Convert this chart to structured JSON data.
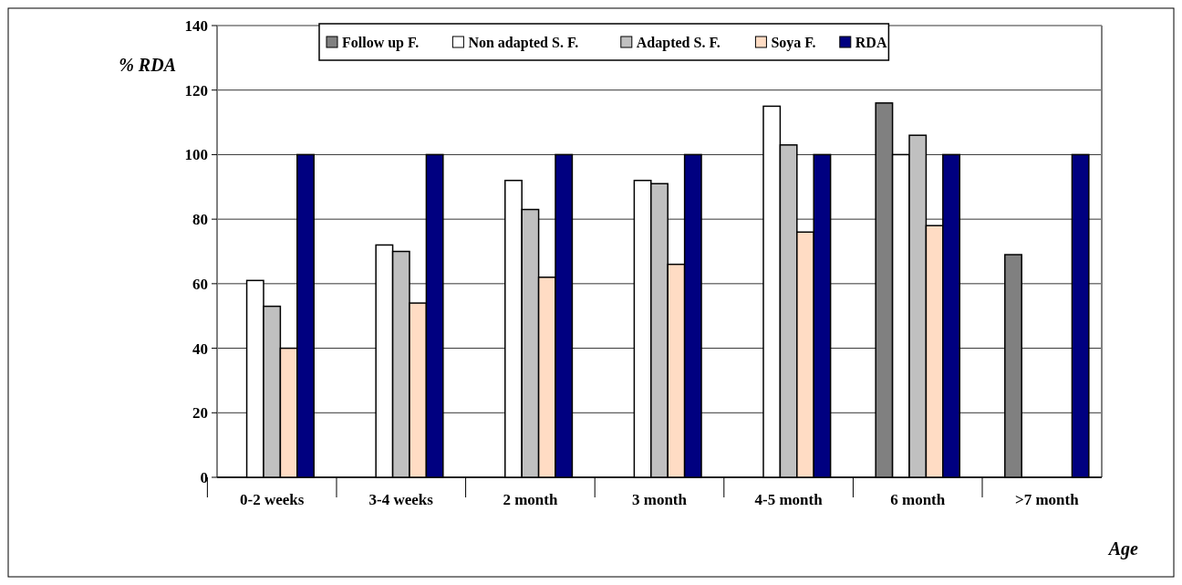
{
  "chart_data": {
    "type": "bar",
    "xlabel": "Age",
    "ylabel": "% RDA",
    "categories": [
      "0-2 weeks",
      "3-4 weeks",
      "2 month",
      "3 month",
      "4-5 month",
      "6 month",
      ">7 month"
    ],
    "series": [
      {
        "name": "Follow up F.",
        "color": "#808080",
        "values": [
          null,
          null,
          null,
          null,
          null,
          116,
          69
        ]
      },
      {
        "name": "Non adapted S. F.",
        "color": "#ffffff",
        "values": [
          61,
          72,
          92,
          92,
          115,
          100,
          null
        ]
      },
      {
        "name": "Adapted S. F.",
        "color": "#c0c0c0",
        "values": [
          53,
          70,
          83,
          91,
          103,
          106,
          null
        ]
      },
      {
        "name": "Soya F.",
        "color": "#ffdcc4",
        "values": [
          40,
          54,
          62,
          66,
          76,
          78,
          null
        ]
      },
      {
        "name": "RDA",
        "color": "#000080",
        "values": [
          100,
          100,
          100,
          100,
          100,
          100,
          100
        ]
      }
    ],
    "ylim": [
      0,
      140
    ],
    "yticks": [
      0,
      20,
      40,
      60,
      80,
      100,
      120,
      140
    ],
    "grid": "y",
    "legend": "top"
  }
}
